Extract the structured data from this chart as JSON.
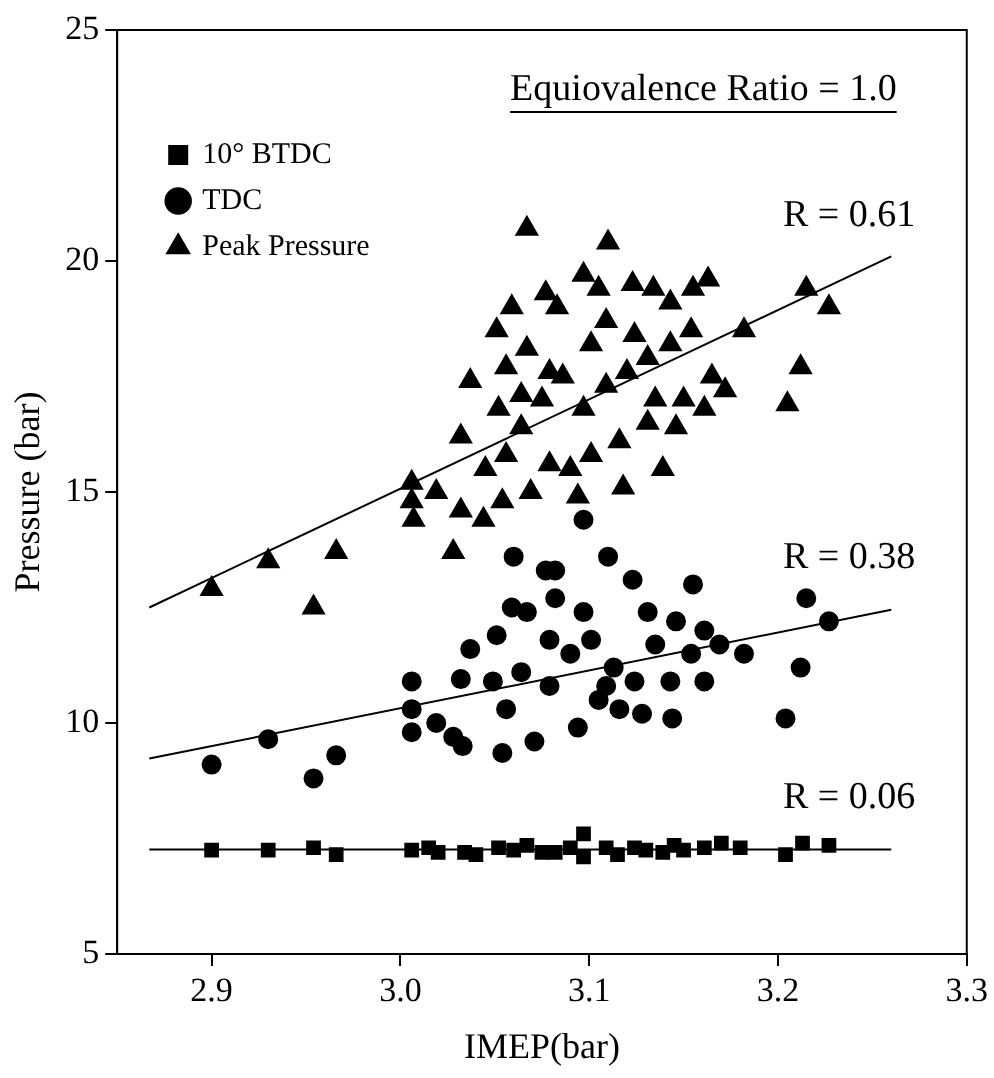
{
  "chart_data": {
    "type": "scatter",
    "xlabel": "IMEP(bar)",
    "ylabel": "Pressure (bar)",
    "xlim": [
      2.85,
      3.3
    ],
    "xticks": [
      {
        "value": 2.9,
        "label": "2.9"
      },
      {
        "value": 3.0,
        "label": "3.0"
      },
      {
        "value": 3.1,
        "label": "3.1"
      },
      {
        "value": 3.2,
        "label": "3.2"
      },
      {
        "value": 3.3,
        "label": "3.3"
      }
    ],
    "ylim": [
      5,
      25
    ],
    "yticks": [
      5,
      10,
      15,
      20,
      25
    ],
    "grid": false,
    "legend": "top left",
    "annotations": [
      "R = 0.61",
      "R = 0.38",
      "R = 0.06",
      "Equiovalence Ratio = 1.0"
    ],
    "series": [
      {
        "name": "10° BTDC",
        "color": "#000000",
        "marker": "square",
        "x": [
          2.9,
          2.93,
          2.954,
          2.966,
          3.006,
          3.015,
          3.02,
          3.034,
          3.04,
          3.052,
          3.06,
          3.067,
          3.075,
          3.082,
          3.09,
          3.097,
          3.097,
          3.109,
          3.115,
          3.124,
          3.13,
          3.139,
          3.145,
          3.15,
          3.161,
          3.17,
          3.18,
          3.204,
          3.213,
          3.227
        ],
        "values": [
          7.25,
          7.25,
          7.3,
          7.15,
          7.25,
          7.3,
          7.2,
          7.2,
          7.15,
          7.3,
          7.25,
          7.35,
          7.2,
          7.2,
          7.3,
          7.6,
          7.1,
          7.3,
          7.15,
          7.3,
          7.25,
          7.2,
          7.35,
          7.25,
          7.3,
          7.4,
          7.3,
          7.15,
          7.4,
          7.35
        ]
      },
      {
        "name": "TDC",
        "color": "#000000",
        "marker": "circle",
        "x": [
          2.9,
          2.93,
          2.954,
          2.966,
          3.006,
          3.006,
          3.006,
          3.019,
          3.028,
          3.033,
          3.032,
          3.037,
          3.054,
          3.051,
          3.059,
          3.06,
          3.067,
          3.071,
          3.077,
          3.082,
          3.082,
          3.097,
          3.094,
          3.11,
          3.123,
          3.128,
          3.144,
          3.155,
          3.161,
          3.182,
          3.204,
          3.212,
          3.215,
          3.227,
          3.064,
          3.079,
          3.09,
          3.101,
          3.113,
          3.124,
          3.135,
          3.146,
          3.154,
          3.169,
          3.105,
          3.116,
          3.056,
          3.049,
          3.097,
          3.131,
          3.143,
          3.161,
          3.079,
          3.109
        ],
        "values": [
          9.1,
          9.65,
          8.8,
          9.3,
          10.9,
          9.8,
          10.3,
          10.0,
          9.7,
          9.5,
          10.95,
          11.6,
          9.35,
          11.9,
          12.5,
          13.6,
          12.4,
          9.6,
          13.3,
          13.3,
          12.7,
          14.4,
          9.9,
          13.6,
          13.1,
          10.2,
          10.1,
          13.0,
          10.9,
          11.5,
          10.1,
          11.2,
          12.7,
          12.2,
          11.1,
          10.8,
          11.5,
          11.8,
          11.2,
          10.9,
          11.7,
          12.2,
          11.5,
          11.7,
          10.5,
          10.3,
          10.3,
          10.9,
          12.4,
          12.4,
          10.9,
          12.0,
          11.8,
          10.8
        ]
      },
      {
        "name": "Peak Pressure",
        "color": "#000000",
        "marker": "triangle",
        "x": [
          2.9,
          2.93,
          2.954,
          2.966,
          3.006,
          3.006,
          3.007,
          3.019,
          3.028,
          3.032,
          3.032,
          3.037,
          3.044,
          3.051,
          3.054,
          3.059,
          3.056,
          3.067,
          3.067,
          3.069,
          3.077,
          3.083,
          3.097,
          3.094,
          3.11,
          3.105,
          3.109,
          3.118,
          3.123,
          3.134,
          3.139,
          3.143,
          3.155,
          3.163,
          3.165,
          3.172,
          3.182,
          3.205,
          3.212,
          3.215,
          3.227,
          3.052,
          3.064,
          3.075,
          3.086,
          3.097,
          3.109,
          3.12,
          3.131,
          3.143,
          3.15,
          3.146,
          3.131,
          3.116,
          3.101,
          3.09,
          3.079,
          3.056,
          3.045,
          3.064,
          3.079,
          3.101,
          3.124,
          3.154,
          3.135,
          3.161
        ],
        "values": [
          12.9,
          13.5,
          12.5,
          13.7,
          15.2,
          14.8,
          14.4,
          15.0,
          13.7,
          16.2,
          14.6,
          17.4,
          14.4,
          18.5,
          14.8,
          19.0,
          17.7,
          20.7,
          18.1,
          15.0,
          19.3,
          19.0,
          19.7,
          14.9,
          20.4,
          19.4,
          18.7,
          15.1,
          19.5,
          19.4,
          15.5,
          19.1,
          19.4,
          19.6,
          17.5,
          17.2,
          18.5,
          16.9,
          17.7,
          19.4,
          19.0,
          16.8,
          16.4,
          17.0,
          17.5,
          16.8,
          17.3,
          17.6,
          17.9,
          18.2,
          17.0,
          16.4,
          16.5,
          16.1,
          15.8,
          15.5,
          15.6,
          15.8,
          15.5,
          17.1,
          17.6,
          18.2,
          18.4,
          18.5,
          17.0,
          16.8
        ]
      },
      {
        "type": "line",
        "color": "#000000",
        "marker": "none",
        "x": [
          2.867,
          3.26
        ],
        "values": [
          12.5,
          20.1
        ]
      },
      {
        "type": "line",
        "color": "#000000",
        "marker": "none",
        "x": [
          2.867,
          3.26
        ],
        "values": [
          9.23,
          12.45
        ]
      },
      {
        "type": "line",
        "color": "#000000",
        "marker": "none",
        "x": [
          2.867,
          3.26
        ],
        "values": [
          7.26,
          7.26
        ]
      }
    ]
  }
}
